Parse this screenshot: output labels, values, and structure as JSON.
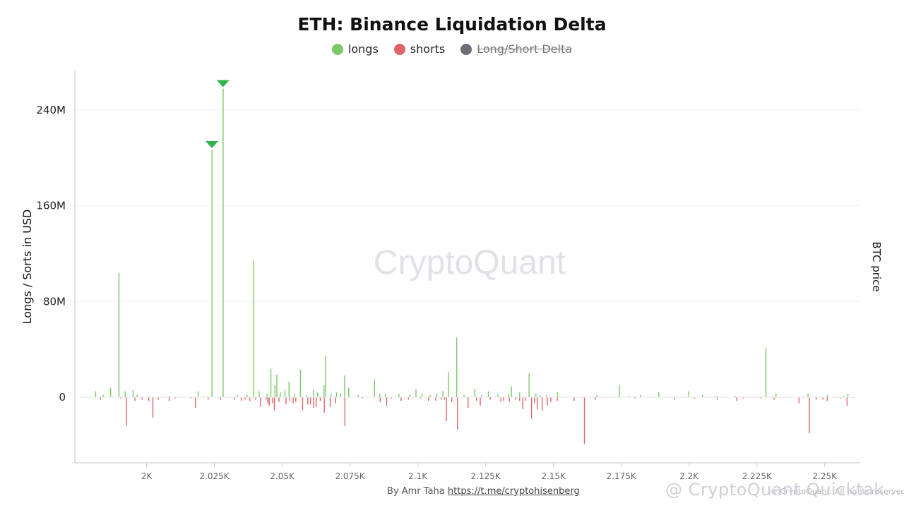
{
  "chart_data": {
    "type": "bar",
    "title": "ETH: Binance Liquidation Delta",
    "ylabel": "Longs / Sorts in USD",
    "y2label": "BTC price",
    "ylim": [
      -55,
      270
    ],
    "xlim": [
      1978,
      2261
    ],
    "yticks": [
      {
        "value": 0,
        "label": "0"
      },
      {
        "value": 80,
        "label": "80M"
      },
      {
        "value": 160,
        "label": "160M"
      },
      {
        "value": 240,
        "label": "240M"
      }
    ],
    "xticks": [
      {
        "value": 2000,
        "label": "2K"
      },
      {
        "value": 2025,
        "label": "2.025K"
      },
      {
        "value": 2050,
        "label": "2.05K"
      },
      {
        "value": 2075,
        "label": "2.075K"
      },
      {
        "value": 2100,
        "label": "2.1K"
      },
      {
        "value": 2125,
        "label": "2.125K"
      },
      {
        "value": 2150,
        "label": "2.15K"
      },
      {
        "value": 2175,
        "label": "2.175K"
      },
      {
        "value": 2200,
        "label": "2.2K"
      },
      {
        "value": 2225,
        "label": "2.225K"
      },
      {
        "value": 2250,
        "label": "2.25K"
      }
    ],
    "grid": true,
    "legend_position": "top-center",
    "series": [
      {
        "name": "longs",
        "color": "#7cc96a",
        "x": [
          1981.2,
          1984,
          1986.7,
          1989.8,
          1992.1,
          1995,
          1996.5,
          2008.5,
          2019,
          2024.1,
          2028.2,
          2033.5,
          2037,
          2039.5,
          2041.5,
          2044.4,
          2045.8,
          2047.3,
          2048,
          2049.3,
          2051,
          2052.5,
          2054.5,
          2056.7,
          2059,
          2061.5,
          2063,
          2065.4,
          2066,
          2068,
          2070,
          2071.5,
          2073,
          2074.5,
          2078,
          2084,
          2086,
          2088,
          2093,
          2097,
          2099.3,
          2101.5,
          2104.5,
          2107,
          2109.2,
          2111.3,
          2114.3,
          2117,
          2121,
          2123.5,
          2126,
          2129.5,
          2133.5,
          2134.5,
          2137.5,
          2141,
          2143.5,
          2145,
          2147.5,
          2151.5,
          2166,
          2174.3,
          2178,
          2182,
          2188.8,
          2199.8,
          2205,
          2210,
          2217,
          2228.3,
          2232,
          2243.8,
          2251,
          2257,
          2258.5
        ],
        "values": [
          5,
          2,
          8,
          104,
          5,
          6,
          2,
          1,
          5,
          207,
          258,
          2,
          2,
          114,
          5,
          3,
          24,
          10,
          19,
          4,
          6,
          13,
          3,
          23,
          2,
          6,
          4,
          10,
          35,
          3,
          4,
          3,
          18,
          8,
          2,
          15,
          3,
          3,
          3,
          2,
          7,
          3,
          2,
          3,
          5,
          21,
          50,
          2,
          7,
          2,
          5,
          3,
          3,
          9,
          4,
          20,
          3,
          2,
          2,
          4,
          2,
          10,
          1,
          2,
          4,
          5,
          2,
          1,
          1,
          41,
          3,
          3,
          2,
          1,
          3
        ]
      },
      {
        "name": "shorts",
        "color": "#e06469",
        "x": [
          1983,
          1990.5,
          1992.5,
          1995.7,
          1998.3,
          2000.8,
          2002.3,
          2004.3,
          2008.3,
          2010.5,
          2016.3,
          2018,
          2022.7,
          2027.3,
          2032.3,
          2034.9,
          2036.3,
          2038,
          2040.2,
          2042,
          2044.1,
          2044.7,
          2045.2,
          2046.5,
          2047.1,
          2048.8,
          2051.4,
          2052.7,
          2054,
          2055,
          2057.5,
          2059.4,
          2060.4,
          2061.6,
          2062.5,
          2064,
          2065.5,
          2067.7,
          2069.6,
          2073.1,
          2079.6,
          2086.1,
          2088.5,
          2090.2,
          2093.8,
          2096.5,
          2101,
          2103.9,
          2106.6,
          2108.6,
          2109.8,
          2110.5,
          2112.5,
          2114.6,
          2118.5,
          2121.6,
          2123,
          2126.7,
          2130.6,
          2131.5,
          2133.7,
          2136.1,
          2137.5,
          2138.7,
          2139.6,
          2141.9,
          2143,
          2144,
          2145.8,
          2147.7,
          2149,
          2151.4,
          2157.6,
          2161.4,
          2165.5,
          2180,
          2194.5,
          2202,
          2210.5,
          2217.5,
          2220,
          2226.5,
          2231.3,
          2240.5,
          2244.3,
          2246.8,
          2249.3,
          2250.9,
          2255.8,
          2258.2
        ],
        "values": [
          2,
          1,
          24,
          3,
          2,
          3,
          17,
          2,
          3,
          1,
          1,
          9,
          2,
          2,
          2,
          3,
          2,
          3,
          2,
          8,
          2,
          5,
          7,
          5,
          11,
          4,
          6,
          3,
          5,
          4,
          11,
          6,
          6,
          9,
          8,
          3,
          13,
          8,
          5,
          24,
          1,
          4,
          7,
          1,
          3,
          2,
          1,
          3,
          3,
          2,
          2,
          20,
          4,
          27,
          9,
          3,
          7,
          2,
          4,
          3,
          4,
          2,
          3,
          10,
          3,
          18,
          5,
          10,
          11,
          7,
          4,
          3,
          3,
          39,
          2,
          1,
          2,
          1,
          2,
          3,
          1,
          1,
          2,
          5,
          30,
          2,
          2,
          3,
          1,
          7
        ]
      }
    ],
    "annotations": [
      {
        "x": 2024.1,
        "y": 207,
        "marker": "down-triangle",
        "color": "#2fb34a"
      },
      {
        "x": 2028.2,
        "y": 258,
        "marker": "down-triangle",
        "color": "#2fb34a"
      }
    ],
    "legend": [
      {
        "label": "longs",
        "color": "#7cc96a",
        "hidden": false
      },
      {
        "label": "shorts",
        "color": "#e06469",
        "hidden": false
      },
      {
        "label": "Long/Short Delta",
        "color": "#6e6e78",
        "hidden": true
      }
    ]
  },
  "watermark": "CryptoQuant",
  "footer": {
    "credit": "By Amr Taha",
    "link": "https://t.me/cryptohisenberg",
    "copyright": "© CryptoQuant. All rights reserved.",
    "bottom_watermark": "@ CryptoQuant Quicktak…"
  },
  "colors": {
    "axis": "#cfcfcf",
    "grid": "#f2f2f2",
    "watermark": "#e1e1e7"
  }
}
